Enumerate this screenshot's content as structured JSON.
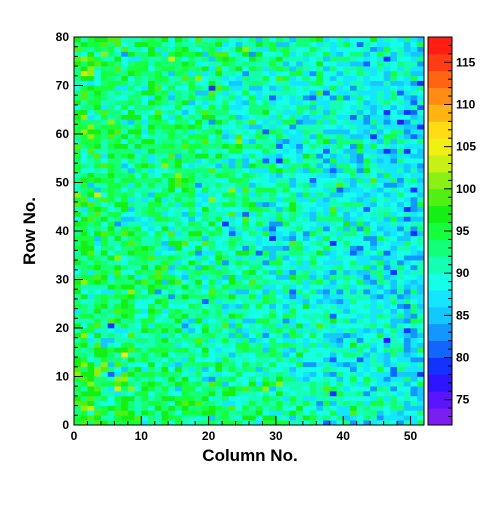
{
  "chart_data": {
    "type": "heatmap",
    "title": "",
    "xlabel": "Column No.",
    "ylabel": "Row No.",
    "xlim": [
      0,
      52
    ],
    "ylim": [
      0,
      80
    ],
    "x_ticks": [
      0,
      10,
      20,
      30,
      40,
      50
    ],
    "y_ticks": [
      0,
      10,
      20,
      30,
      40,
      50,
      60,
      70,
      80
    ],
    "n_columns": 52,
    "n_rows": 80,
    "z_range": [
      72,
      118
    ],
    "colorbar_ticks": [
      75,
      80,
      85,
      90,
      95,
      100,
      105,
      110,
      115
    ],
    "colorbar_levels": [
      72,
      74,
      76,
      78,
      80,
      82,
      84,
      86,
      88,
      90,
      92,
      94,
      96,
      98,
      100,
      102,
      104,
      106,
      108,
      110,
      112,
      114,
      116,
      118
    ],
    "colorbar_colors": [
      "#7b1ef0",
      "#5a14ff",
      "#2e14ff",
      "#1432ff",
      "#1464ff",
      "#1496ff",
      "#14c8ff",
      "#14e6ff",
      "#14ffe6",
      "#14ffb4",
      "#14ff78",
      "#14ff3c",
      "#14f014",
      "#50f014",
      "#8cf014",
      "#c8f014",
      "#f0f014",
      "#ffdc14",
      "#ffb414",
      "#ff8c14",
      "#ff6414",
      "#ff3c14",
      "#ff1e14"
    ],
    "grid": false,
    "legend": "colorbar-right",
    "value_trend": {
      "description_free": true,
      "left_mean": 94,
      "right_mean": 87
    }
  }
}
